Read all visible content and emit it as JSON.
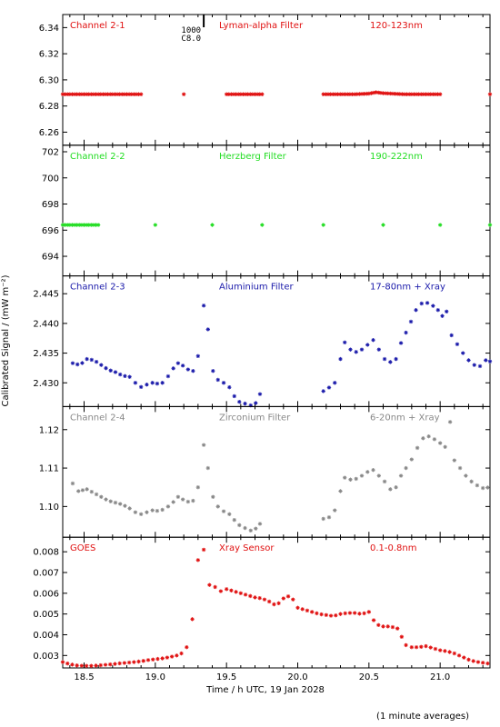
{
  "chart_data": {
    "type": "scatter",
    "xlabel": "Time / h UTC, 19 Jan 2028",
    "ylabel": "Calibrated Signal / (mW m⁻²)",
    "footnote": "(1 minute averages)",
    "xlim": [
      18.35,
      21.35
    ],
    "xticks": [
      18.5,
      19.0,
      19.5,
      20.0,
      20.5,
      21.0
    ],
    "xtick_labels": [
      "18.5",
      "19.0",
      "19.5",
      "20.0",
      "20.5",
      "21.0"
    ],
    "marker_event": {
      "x": 19.34,
      "label_top": "1000",
      "label_bottom": "C8.0"
    },
    "panels": [
      {
        "channel": "Channel 2-1",
        "filter": "Lyman-alpha Filter",
        "band": "120-123nm",
        "color": "#e01010",
        "ylim": [
          6.25,
          6.35
        ],
        "yticks": [
          6.26,
          6.28,
          6.3,
          6.32,
          6.34
        ],
        "ytick_labels": [
          "6.26",
          "6.28",
          "6.30",
          "6.32",
          "6.34"
        ],
        "points": [
          [
            18.35,
            6.289
          ],
          [
            18.6,
            6.289
          ],
          [
            18.9,
            6.289
          ],
          [
            19.2,
            6.289
          ],
          [
            19.5,
            6.289
          ],
          [
            19.75,
            6.289
          ],
          [
            20.18,
            6.289
          ],
          [
            20.4,
            6.289
          ],
          [
            20.5,
            6.2895
          ],
          [
            20.55,
            6.2905
          ],
          [
            20.6,
            6.2898
          ],
          [
            20.75,
            6.289
          ],
          [
            21.0,
            6.289
          ],
          [
            21.35,
            6.289
          ]
        ]
      },
      {
        "channel": "Channel 2-2",
        "filter": "Herzberg Filter",
        "band": "190-222nm",
        "color": "#22dd22",
        "ylim": [
          692.5,
          702.5
        ],
        "yticks": [
          694,
          696,
          698,
          700,
          702
        ],
        "ytick_labels": [
          "694",
          "696",
          "698",
          "700",
          "702"
        ],
        "points": [
          [
            18.35,
            696.4
          ],
          [
            18.6,
            696.4
          ],
          [
            19.0,
            696.4
          ],
          [
            19.4,
            696.4
          ],
          [
            19.75,
            696.4
          ],
          [
            20.18,
            696.4
          ],
          [
            20.6,
            696.4
          ],
          [
            21.0,
            696.4
          ],
          [
            21.35,
            696.4
          ]
        ]
      },
      {
        "channel": "Channel 2-3",
        "filter": "Aluminium Filter",
        "band": "17-80nm + Xray",
        "color": "#1a1aaa",
        "ylim": [
          2.426,
          2.448
        ],
        "yticks": [
          2.43,
          2.435,
          2.44,
          2.445
        ],
        "ytick_labels": [
          "2.430",
          "2.435",
          "2.440",
          "2.445"
        ],
        "points": [
          [
            18.42,
            2.4333
          ],
          [
            18.47,
            2.433
          ],
          [
            18.52,
            2.434
          ],
          [
            18.57,
            2.4338
          ],
          [
            18.62,
            2.433
          ],
          [
            18.67,
            2.4322
          ],
          [
            18.72,
            2.4318
          ],
          [
            18.77,
            2.4312
          ],
          [
            18.82,
            2.431
          ],
          [
            18.86,
            2.43
          ],
          [
            18.9,
            2.4293
          ],
          [
            18.94,
            2.4297
          ],
          [
            18.98,
            2.43
          ],
          [
            19.03,
            2.4298
          ],
          [
            19.07,
            2.4302
          ],
          [
            19.11,
            2.432
          ],
          [
            19.16,
            2.4333
          ],
          [
            19.21,
            2.4327
          ],
          [
            19.25,
            2.4318
          ],
          [
            19.28,
            2.4322
          ],
          [
            19.3,
            2.4345
          ],
          [
            19.32,
            2.438
          ],
          [
            19.34,
            2.443
          ],
          [
            19.35,
            2.4455
          ],
          [
            19.37,
            2.439
          ],
          [
            19.39,
            2.433
          ],
          [
            19.42,
            2.431
          ],
          [
            19.46,
            2.43
          ],
          [
            19.5,
            2.43
          ],
          [
            19.54,
            2.4285
          ],
          [
            19.57,
            2.427
          ],
          [
            19.61,
            2.4266
          ],
          [
            19.65,
            2.4264
          ],
          [
            19.69,
            2.426
          ],
          [
            19.72,
            2.4272
          ],
          [
            19.75,
            2.429
          ],
          [
            20.18,
            2.4286
          ],
          [
            20.22,
            2.4292
          ],
          [
            20.26,
            2.43
          ],
          [
            20.3,
            2.434
          ],
          [
            20.33,
            2.4368
          ],
          [
            20.37,
            2.4356
          ],
          [
            20.41,
            2.4352
          ],
          [
            20.45,
            2.4356
          ],
          [
            20.49,
            2.4364
          ],
          [
            20.53,
            2.4372
          ],
          [
            20.57,
            2.4356
          ],
          [
            20.61,
            2.434
          ],
          [
            20.65,
            2.4335
          ],
          [
            20.69,
            2.434
          ],
          [
            20.71,
            2.4358
          ],
          [
            20.74,
            2.4376
          ],
          [
            20.78,
            2.4393
          ],
          [
            20.81,
            2.4413
          ],
          [
            20.85,
            2.4432
          ],
          [
            20.89,
            2.4435
          ],
          [
            20.93,
            2.4434
          ],
          [
            20.97,
            2.4425
          ],
          [
            21.0,
            2.442
          ],
          [
            21.03,
            2.4405
          ],
          [
            21.06,
            2.4435
          ],
          [
            21.08,
            2.438
          ],
          [
            21.12,
            2.4365
          ],
          [
            21.16,
            2.435
          ],
          [
            21.2,
            2.4338
          ],
          [
            21.24,
            2.433
          ],
          [
            21.28,
            2.4328
          ],
          [
            21.32,
            2.4338
          ],
          [
            21.35,
            2.4336
          ]
        ]
      },
      {
        "channel": "Channel 2-4",
        "filter": "Zirconium Filter",
        "band": "6-20nm + Xray",
        "color": "#888888",
        "ylim": [
          1.092,
          1.126
        ],
        "yticks": [
          1.1,
          1.11,
          1.12
        ],
        "ytick_labels": [
          "1.10",
          "1.11",
          "1.12"
        ],
        "points": [
          [
            18.42,
            1.106
          ],
          [
            18.46,
            1.104
          ],
          [
            18.52,
            1.1045
          ],
          [
            18.57,
            1.1035
          ],
          [
            18.62,
            1.1025
          ],
          [
            18.67,
            1.1015
          ],
          [
            18.72,
            1.101
          ],
          [
            18.77,
            1.1005
          ],
          [
            18.82,
            1.0995
          ],
          [
            18.86,
            1.0985
          ],
          [
            18.9,
            1.098
          ],
          [
            18.94,
            1.0985
          ],
          [
            18.98,
            1.099
          ],
          [
            19.03,
            1.0988
          ],
          [
            19.07,
            1.0995
          ],
          [
            19.11,
            1.1005
          ],
          [
            19.16,
            1.1025
          ],
          [
            19.21,
            1.1015
          ],
          [
            19.25,
            1.101
          ],
          [
            19.28,
            1.102
          ],
          [
            19.3,
            1.105
          ],
          [
            19.32,
            1.11
          ],
          [
            19.34,
            1.116
          ],
          [
            19.35,
            1.118
          ],
          [
            19.37,
            1.11
          ],
          [
            19.39,
            1.104
          ],
          [
            19.42,
            1.101
          ],
          [
            19.46,
            1.099
          ],
          [
            19.5,
            1.0985
          ],
          [
            19.54,
            1.0975
          ],
          [
            19.57,
            1.0955
          ],
          [
            19.61,
            1.0948
          ],
          [
            19.65,
            1.094
          ],
          [
            19.69,
            1.0935
          ],
          [
            19.72,
            1.095
          ],
          [
            19.75,
            1.096
          ],
          [
            20.18,
            1.0968
          ],
          [
            20.22,
            1.0972
          ],
          [
            20.26,
            1.099
          ],
          [
            20.3,
            1.104
          ],
          [
            20.33,
            1.1075
          ],
          [
            20.37,
            1.107
          ],
          [
            20.41,
            1.1072
          ],
          [
            20.45,
            1.108
          ],
          [
            20.49,
            1.109
          ],
          [
            20.53,
            1.1095
          ],
          [
            20.57,
            1.108
          ],
          [
            20.61,
            1.1065
          ],
          [
            20.65,
            1.1045
          ],
          [
            20.69,
            1.105
          ],
          [
            20.71,
            1.107
          ],
          [
            20.74,
            1.109
          ],
          [
            20.78,
            1.111
          ],
          [
            20.82,
            1.1135
          ],
          [
            20.86,
            1.117
          ],
          [
            20.9,
            1.1185
          ],
          [
            20.94,
            1.118
          ],
          [
            20.98,
            1.117
          ],
          [
            21.02,
            1.116
          ],
          [
            21.05,
            1.115
          ],
          [
            21.07,
            1.122
          ],
          [
            21.1,
            1.112
          ],
          [
            21.14,
            1.11
          ],
          [
            21.18,
            1.108
          ],
          [
            21.22,
            1.1065
          ],
          [
            21.26,
            1.1055
          ],
          [
            21.3,
            1.1048
          ],
          [
            21.35,
            1.105
          ]
        ]
      },
      {
        "channel": "GOES",
        "filter": "Xray Sensor",
        "band": "0.1-0.8nm",
        "color": "#e01010",
        "ylim": [
          0.0024,
          0.0087
        ],
        "yticks": [
          0.003,
          0.004,
          0.005,
          0.006,
          0.007,
          0.008
        ],
        "ytick_labels": [
          "0.003",
          "0.004",
          "0.005",
          "0.006",
          "0.007",
          "0.008"
        ],
        "points": [
          [
            18.35,
            0.00268
          ],
          [
            18.4,
            0.00258
          ],
          [
            18.45,
            0.00252
          ],
          [
            18.5,
            0.0025
          ],
          [
            18.55,
            0.0025
          ],
          [
            18.6,
            0.00252
          ],
          [
            18.65,
            0.00255
          ],
          [
            18.7,
            0.00258
          ],
          [
            18.75,
            0.00262
          ],
          [
            18.8,
            0.00265
          ],
          [
            18.85,
            0.00268
          ],
          [
            18.9,
            0.00272
          ],
          [
            18.95,
            0.00278
          ],
          [
            19.0,
            0.00282
          ],
          [
            19.05,
            0.00286
          ],
          [
            19.1,
            0.00292
          ],
          [
            19.15,
            0.003
          ],
          [
            19.2,
            0.00315
          ],
          [
            19.24,
            0.00365
          ],
          [
            19.26,
            0.00475
          ],
          [
            19.28,
            0.0072
          ],
          [
            19.3,
            0.0076
          ],
          [
            19.32,
            0.0079
          ],
          [
            19.34,
            0.0081
          ],
          [
            19.36,
            0.007
          ],
          [
            19.38,
            0.0064
          ],
          [
            19.42,
            0.0063
          ],
          [
            19.46,
            0.0061
          ],
          [
            19.5,
            0.0062
          ],
          [
            19.55,
            0.0061
          ],
          [
            19.6,
            0.006
          ],
          [
            19.65,
            0.0059
          ],
          [
            19.7,
            0.0058
          ],
          [
            19.75,
            0.00575
          ],
          [
            19.8,
            0.0056
          ],
          [
            19.85,
            0.0054
          ],
          [
            19.9,
            0.00575
          ],
          [
            19.95,
            0.0059
          ],
          [
            20.0,
            0.0053
          ],
          [
            20.05,
            0.0052
          ],
          [
            20.1,
            0.0051
          ],
          [
            20.15,
            0.005
          ],
          [
            20.2,
            0.00495
          ],
          [
            20.25,
            0.0049
          ],
          [
            20.3,
            0.005
          ],
          [
            20.35,
            0.00505
          ],
          [
            20.4,
            0.00505
          ],
          [
            20.45,
            0.005
          ],
          [
            20.5,
            0.0051
          ],
          [
            20.55,
            0.0045
          ],
          [
            20.6,
            0.0044
          ],
          [
            20.65,
            0.0044
          ],
          [
            20.7,
            0.0043
          ],
          [
            20.73,
            0.0039
          ],
          [
            20.76,
            0.0035
          ],
          [
            20.8,
            0.0034
          ],
          [
            20.85,
            0.0034
          ],
          [
            20.9,
            0.00345
          ],
          [
            20.95,
            0.00335
          ],
          [
            21.0,
            0.00325
          ],
          [
            21.05,
            0.0032
          ],
          [
            21.1,
            0.0031
          ],
          [
            21.15,
            0.00295
          ],
          [
            21.2,
            0.0028
          ],
          [
            21.25,
            0.0027
          ],
          [
            21.3,
            0.00265
          ],
          [
            21.35,
            0.0026
          ]
        ]
      }
    ]
  }
}
